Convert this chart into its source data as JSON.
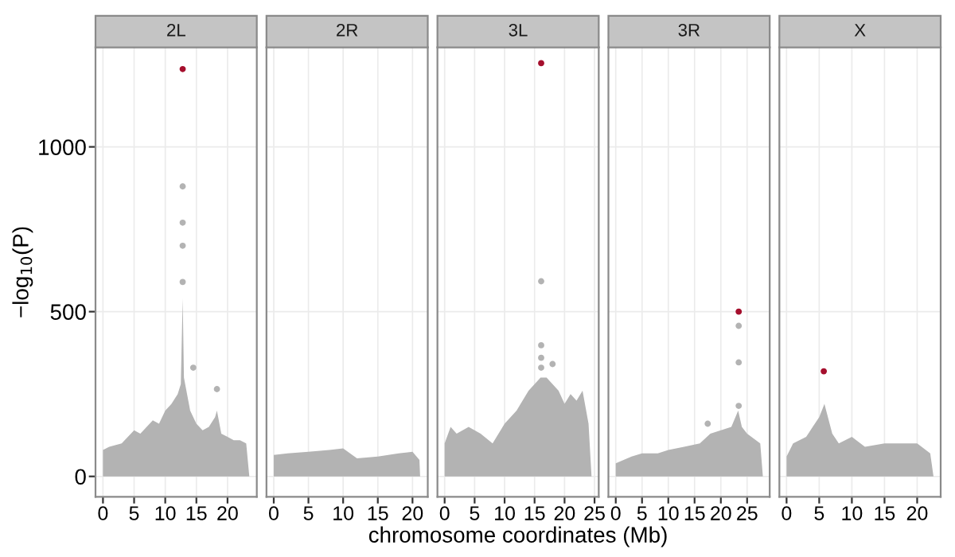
{
  "chart_data": [
    {
      "type": "scatter",
      "title": "2L",
      "ylabel": "−log$_{10}$(P)",
      "xlim": [
        -1.2,
        24.7
      ],
      "ylim": [
        -62,
        1302
      ],
      "xticks": [
        0,
        5,
        10,
        15,
        20
      ],
      "yticks": [
        0,
        500,
        1000
      ],
      "grid": true,
      "series": [
        {
          "type": "area",
          "color": "#b3b3b3",
          "x": [
            0,
            1,
            3,
            5,
            6,
            8,
            9,
            10,
            11,
            12,
            12.5,
            12.8,
            13,
            13.5,
            14,
            15,
            16,
            17,
            18,
            18.3,
            19,
            20,
            21,
            22,
            23,
            23.5
          ],
          "values": [
            80,
            90,
            100,
            140,
            130,
            170,
            160,
            200,
            220,
            250,
            280,
            540,
            300,
            250,
            200,
            160,
            140,
            150,
            180,
            200,
            130,
            120,
            110,
            110,
            100,
            0
          ]
        },
        {
          "marker": "circle",
          "color": "#b3b3b3",
          "x": [
            12.8,
            12.8,
            12.8,
            12.8,
            14.5,
            18.3
          ],
          "values": [
            590,
            700,
            770,
            880,
            330,
            265
          ]
        },
        {
          "marker": "circle",
          "color": "#a50f2d",
          "x": [
            12.8
          ],
          "values": [
            1236
          ]
        }
      ]
    },
    {
      "type": "scatter",
      "title": "2R",
      "xlim": [
        -1.05,
        22.2
      ],
      "ylim": [
        -62,
        1302
      ],
      "xticks": [
        0,
        5,
        10,
        15,
        20
      ],
      "yticks": [
        0,
        500,
        1000
      ],
      "grid": true,
      "tick_labels": "x",
      "series": [
        {
          "type": "area",
          "color": "#b3b3b3",
          "x": [
            0,
            2,
            5,
            8,
            10,
            12,
            15,
            18,
            20,
            21,
            21.1
          ],
          "values": [
            65,
            70,
            75,
            80,
            85,
            55,
            60,
            70,
            75,
            50,
            0
          ]
        }
      ]
    },
    {
      "type": "scatter",
      "title": "3L",
      "xlabel": "chromosome coordinates (Mb)",
      "xlim": [
        -1.2,
        25.7
      ],
      "ylim": [
        -62,
        1302
      ],
      "xticks": [
        0,
        5,
        10,
        15,
        20,
        25
      ],
      "yticks": [
        0,
        500,
        1000
      ],
      "grid": true,
      "tick_labels": "x",
      "series": [
        {
          "type": "area",
          "color": "#b3b3b3",
          "x": [
            0,
            1,
            2,
            4,
            6,
            8,
            10,
            12,
            14,
            15,
            16,
            17,
            18,
            19,
            20,
            21,
            22,
            23,
            24,
            24.5
          ],
          "values": [
            100,
            150,
            130,
            150,
            130,
            100,
            160,
            200,
            260,
            280,
            300,
            300,
            280,
            260,
            220,
            250,
            230,
            260,
            160,
            0
          ]
        },
        {
          "marker": "circle",
          "color": "#b3b3b3",
          "x": [
            16.1,
            16.1,
            16.1,
            16.1,
            18
          ],
          "values": [
            592,
            398,
            360,
            330,
            341
          ]
        },
        {
          "marker": "circle",
          "color": "#a50f2d",
          "x": [
            16.1
          ],
          "values": [
            1254
          ]
        }
      ]
    },
    {
      "type": "scatter",
      "title": "3R",
      "xlim": [
        -1.4,
        29.3
      ],
      "ylim": [
        -62,
        1302
      ],
      "xticks": [
        0,
        5,
        10,
        15,
        20,
        25
      ],
      "yticks": [
        0,
        500,
        1000
      ],
      "grid": true,
      "tick_labels": "x",
      "series": [
        {
          "type": "area",
          "color": "#b3b3b3",
          "x": [
            0,
            3,
            5,
            8,
            10,
            13,
            16,
            18,
            20,
            22,
            23.3,
            24,
            25,
            27.5,
            28
          ],
          "values": [
            40,
            60,
            70,
            70,
            80,
            90,
            100,
            130,
            140,
            150,
            200,
            150,
            130,
            100,
            0
          ]
        },
        {
          "marker": "circle",
          "color": "#b3b3b3",
          "x": [
            23.4,
            23.4,
            23.4,
            17.5
          ],
          "values": [
            457,
            346,
            214,
            160
          ]
        },
        {
          "marker": "circle",
          "color": "#a50f2d",
          "x": [
            23.4
          ],
          "values": [
            500
          ]
        }
      ]
    },
    {
      "type": "scatter",
      "title": "X",
      "xlim": [
        -1.1,
        23.6
      ],
      "ylim": [
        -62,
        1302
      ],
      "xticks": [
        0,
        5,
        10,
        15,
        20
      ],
      "yticks": [
        0,
        500,
        1000
      ],
      "grid": true,
      "tick_labels": "x",
      "series": [
        {
          "type": "area",
          "color": "#b3b3b3",
          "x": [
            0,
            1,
            3,
            4,
            5,
            5.8,
            7,
            8,
            10,
            12,
            15,
            20,
            22,
            22.5
          ],
          "values": [
            60,
            100,
            120,
            150,
            180,
            220,
            130,
            100,
            120,
            90,
            100,
            100,
            70,
            0
          ]
        },
        {
          "marker": "circle",
          "color": "#a50f2d",
          "x": [
            5.7
          ],
          "values": [
            319
          ]
        }
      ]
    }
  ]
}
